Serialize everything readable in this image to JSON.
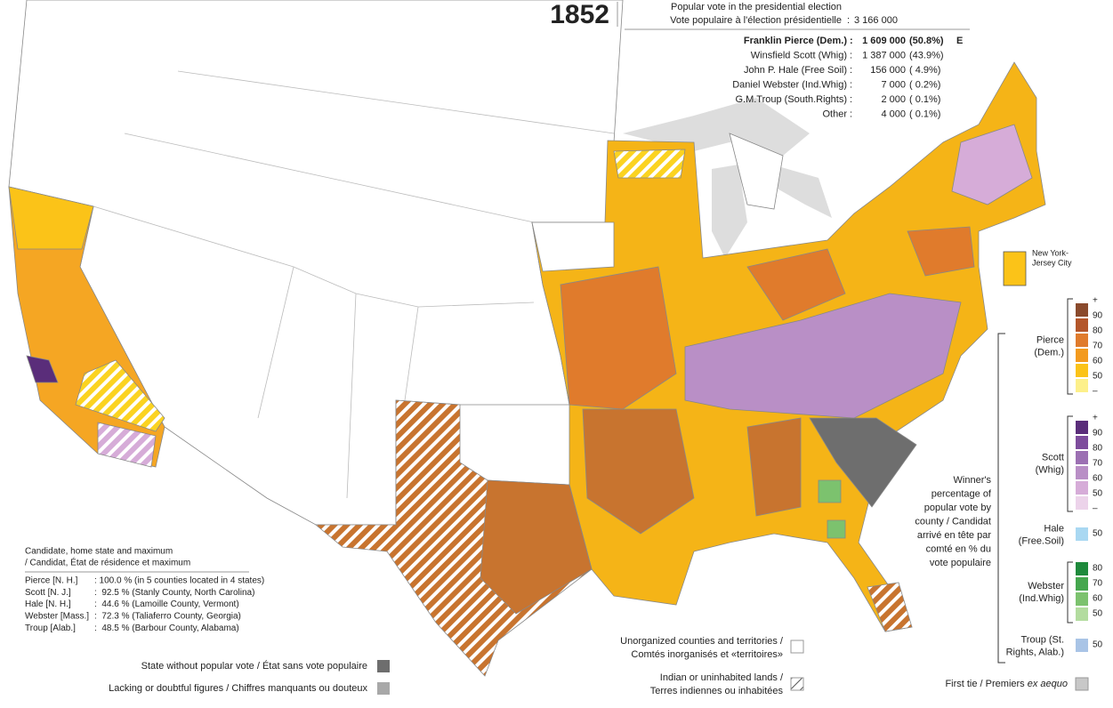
{
  "year": "1852",
  "header": {
    "popular_vote": [
      "Popular vote in the presidential election",
      "Vote populaire à l'élection présidentielle"
    ],
    "total": "3 166 000"
  },
  "candidates": [
    {
      "name": "Franklin Pierce (Dem.)",
      "votes": "1 609 000",
      "pct": "(50.8%)",
      "mark": "E"
    },
    {
      "name": "Winsfield Scott (Whig)",
      "votes": "1 387 000",
      "pct": "(43.9%)"
    },
    {
      "name": "John P. Hale (Free Soil)",
      "votes": "156 000",
      "pct": "( 4.9%)"
    },
    {
      "name": "Daniel Webster (Ind.Whig)",
      "votes": "7 000",
      "pct": "( 0.2%)"
    },
    {
      "name": "G.M.Troup (South.Rights)",
      "votes": "2 000",
      "pct": "( 0.1%)"
    },
    {
      "name": "Other",
      "votes": "4 000",
      "pct": "( 0.1%)"
    }
  ],
  "map_labels": {
    "nyc": [
      "New York-",
      "Jersey City"
    ]
  },
  "legend": {
    "caption": [
      "Winner's",
      "percentage of",
      "popular vote by",
      "county / Candidat",
      "arrivé en tête par",
      "comté en % du",
      "vote populaire"
    ],
    "groups": [
      {
        "name": [
          "Pierce",
          "(Dem.)"
        ],
        "labels": [
          "+",
          "90",
          "80",
          "70",
          "60",
          "50",
          "–"
        ],
        "colors": [
          "#8a4a2c",
          "#b4562a",
          "#e07b2c",
          "#f39a1e",
          "#fbc318",
          "#fdf08a"
        ]
      },
      {
        "name": [
          "Scott",
          "(Whig)"
        ],
        "labels": [
          "+",
          "90",
          "80",
          "70",
          "60",
          "50",
          "–"
        ],
        "colors": [
          "#5a2d7a",
          "#7d4c9c",
          "#9c70b3",
          "#b98fc6",
          "#d6acd8",
          "#ecd3ea"
        ]
      },
      {
        "name": [
          "Hale",
          "(Free.Soil)"
        ],
        "labels": [
          "50"
        ],
        "colors": [
          "#a9d8f2"
        ]
      },
      {
        "name": [
          "Webster",
          "(Ind.Whig)"
        ],
        "labels": [
          "80",
          "70",
          "60",
          "50"
        ],
        "colors": [
          "#1e8a3c",
          "#45a74e",
          "#7cc26e",
          "#b3dc9f"
        ]
      },
      {
        "name": [
          "Troup (St.",
          "Rights, Alab.)"
        ],
        "labels": [
          "50"
        ],
        "colors": [
          "#a9c4e6"
        ]
      }
    ]
  },
  "maxima": {
    "title": [
      "Candidate, home state and maximum",
      "/ Candidat, État de résidence et maximum"
    ],
    "rows": [
      [
        "Pierce [N. H.]",
        ": 100.0 % (in 5 counties located in 4 states)"
      ],
      [
        "Scott [N. J.]",
        ":  92.5 % (Stanly County, North Carolina)"
      ],
      [
        "Hale [N. H.]",
        ":  44.6 % (Lamoille County, Vermont)"
      ],
      [
        "Webster [Mass.]",
        ":  72.3 % (Taliaferro County, Georgia)"
      ],
      [
        "Troup [Alab.]",
        ":  48.5 % (Barbour County, Alabama)"
      ]
    ]
  },
  "notes": {
    "no_vote": "State without popular vote / État sans vote populaire",
    "lacking": "Lacking or doubtful figures / Chiffres manquants ou douteux",
    "unorganized": [
      "Unorganized counties and territories /",
      "Comtés inorganisés et «territoires»"
    ],
    "indian": [
      "Indian or uninhabited lands /",
      "Terres indiennes ou inhabitées"
    ],
    "tie": [
      "First tie / Premiers ",
      "ex aequo"
    ]
  }
}
